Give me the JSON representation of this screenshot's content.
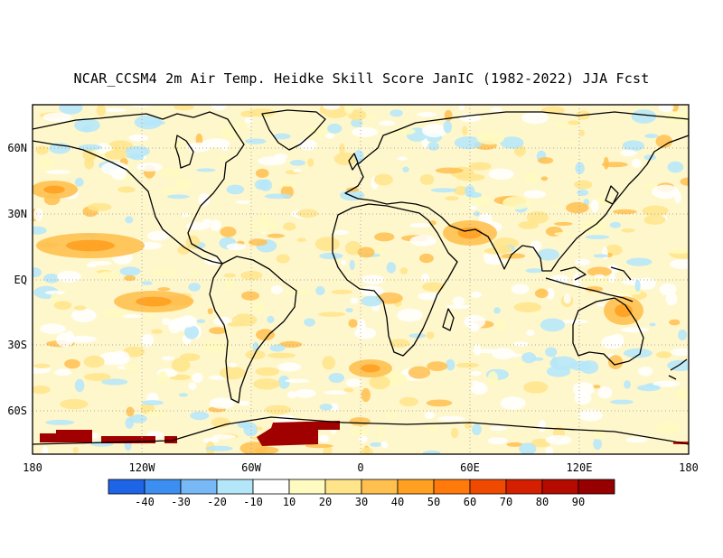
{
  "title": "NCAR_CCSM4 2m Air Temp. Heidke Skill Score JanIC (1982-2022) JJA Fcst",
  "map": {
    "lat_labels": [
      "60N",
      "30N",
      "EQ",
      "30S",
      "60S"
    ],
    "lon_labels": [
      "180",
      "120W",
      "60W",
      "0",
      "60E",
      "120E",
      "180"
    ]
  },
  "colorbar": {
    "bins": [
      {
        "color": "#1e64e6",
        "label": "-40"
      },
      {
        "color": "#3c8ff0",
        "label": "-30"
      },
      {
        "color": "#78b8f6",
        "label": "-20"
      },
      {
        "color": "#b4e6fa",
        "label": "-10"
      },
      {
        "color": "#ffffff",
        "label": "10"
      },
      {
        "color": "#fffac0",
        "label": "20"
      },
      {
        "color": "#ffe48a",
        "label": "30"
      },
      {
        "color": "#ffc050",
        "label": "40"
      },
      {
        "color": "#ffa020",
        "label": "50"
      },
      {
        "color": "#ff7a0a",
        "label": "60"
      },
      {
        "color": "#f04a00",
        "label": "70"
      },
      {
        "color": "#d42000",
        "label": "80"
      },
      {
        "color": "#b40a00",
        "label": "90"
      },
      {
        "color": "#960000",
        "label": ""
      }
    ]
  },
  "legend_colors": {
    "neg_light": "#b4e6fa",
    "pos_light": "#fffac0",
    "pos_mid": "#ffe48a",
    "pos_strong": "#ffc050",
    "pos_orange": "#ffa020",
    "max": "#a00000"
  }
}
